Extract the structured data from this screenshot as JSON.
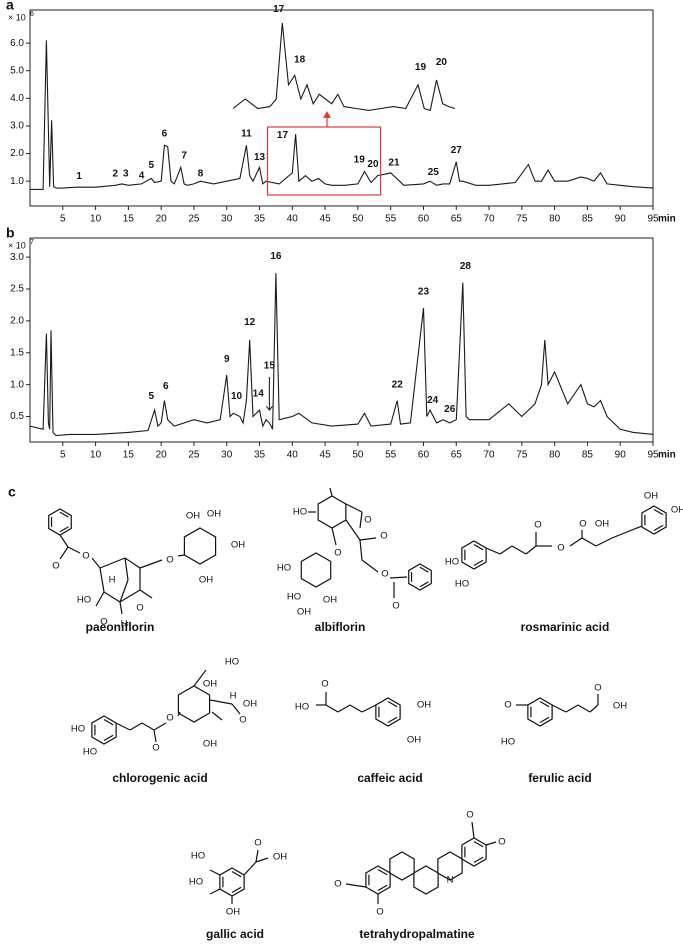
{
  "chart_data": [
    {
      "type": "line",
      "panel": "a",
      "y_scale": "× 10",
      "y_scale_exponent": "6",
      "x_label": "min",
      "xlim": [
        0,
        95
      ],
      "xticks": [
        5,
        10,
        15,
        20,
        25,
        30,
        35,
        40,
        45,
        50,
        55,
        60,
        65,
        70,
        75,
        80,
        85,
        90,
        95
      ],
      "ylim": [
        0.1,
        7.2
      ],
      "yticks": [
        {
          "value": 1,
          "label": "1.0"
        },
        {
          "value": 2,
          "label": "2.0"
        },
        {
          "value": 3,
          "label": "3.0"
        },
        {
          "value": 4,
          "label": "4.0"
        },
        {
          "value": 5,
          "label": "5.0"
        },
        {
          "value": 6,
          "label": "6.0"
        }
      ],
      "color": "#1a1a1a",
      "x": [
        0,
        2,
        2.5,
        3,
        3.3,
        3.6,
        4,
        5,
        7,
        10,
        13,
        14,
        15,
        17,
        18.5,
        19,
        20,
        20.5,
        21,
        21.5,
        22,
        23,
        23.5,
        24,
        25,
        26,
        28,
        30,
        32,
        33,
        33.5,
        34,
        35,
        35.5,
        36,
        38,
        40,
        40.5,
        41,
        42,
        43,
        44,
        45,
        46,
        48,
        50,
        51,
        52,
        53,
        55,
        57,
        60,
        61,
        62,
        63,
        64,
        65,
        65.5,
        66,
        68,
        70,
        72,
        74,
        76,
        77,
        78,
        79,
        80,
        82,
        84,
        85,
        86,
        87,
        88,
        90,
        92,
        95
      ],
      "values": [
        0.7,
        0.7,
        6.1,
        0.8,
        3.2,
        0.8,
        0.75,
        0.75,
        0.78,
        0.78,
        0.85,
        0.9,
        0.85,
        0.9,
        1.1,
        0.95,
        1.0,
        2.3,
        2.25,
        1.0,
        0.9,
        1.5,
        0.9,
        0.85,
        0.9,
        1.0,
        0.9,
        1.0,
        1.1,
        2.3,
        1.2,
        1.0,
        1.5,
        0.9,
        1.0,
        0.9,
        1.3,
        2.7,
        1.0,
        1.2,
        1.0,
        1.1,
        0.9,
        0.85,
        0.85,
        0.9,
        1.35,
        0.95,
        1.2,
        1.3,
        0.85,
        0.9,
        1.0,
        0.85,
        0.9,
        0.9,
        1.7,
        1.0,
        1.0,
        0.85,
        0.85,
        0.9,
        0.95,
        1.6,
        1.0,
        1.0,
        1.4,
        1.0,
        1.0,
        1.15,
        1.1,
        1.0,
        1.3,
        0.9,
        0.85,
        0.8,
        0.75
      ],
      "annotations": [
        {
          "label": "1",
          "x": 7.5,
          "y": 0.95
        },
        {
          "label": "2",
          "x": 13,
          "y": 1.05
        },
        {
          "label": "3",
          "x": 14.6,
          "y": 1.05
        },
        {
          "label": "4",
          "x": 17,
          "y": 0.98
        },
        {
          "label": "5",
          "x": 18.5,
          "y": 1.35
        },
        {
          "label": "6",
          "x": 20.5,
          "y": 2.5
        },
        {
          "label": "7",
          "x": 23.5,
          "y": 1.7
        },
        {
          "label": "8",
          "x": 26,
          "y": 1.05
        },
        {
          "label": "11",
          "x": 33,
          "y": 2.5
        },
        {
          "label": "13",
          "x": 35,
          "y": 1.65
        },
        {
          "label": "17",
          "x": 38.5,
          "y": 2.45
        },
        {
          "label": "19",
          "x": 50.2,
          "y": 1.55
        },
        {
          "label": "20",
          "x": 52.3,
          "y": 1.4
        },
        {
          "label": "21",
          "x": 55.5,
          "y": 1.45
        },
        {
          "label": "25",
          "x": 61.5,
          "y": 1.1
        },
        {
          "label": "27",
          "x": 65,
          "y": 1.9
        }
      ],
      "inset": {
        "x": [
          35,
          36,
          36.5,
          37,
          38,
          38.5,
          39,
          39.5,
          40,
          40.5,
          41,
          41.5,
          42,
          42.5,
          43,
          43.5,
          44,
          45,
          46,
          47,
          48,
          49,
          50,
          50.5,
          51,
          51.5,
          52,
          52.5,
          53
        ],
        "values": [
          0.1,
          0.2,
          0.15,
          0.1,
          0.12,
          0.2,
          1.0,
          0.35,
          0.45,
          0.2,
          0.35,
          0.15,
          0.25,
          0.2,
          0.15,
          0.25,
          0.12,
          0.1,
          0.08,
          0.1,
          0.12,
          0.1,
          0.35,
          0.1,
          0.08,
          0.4,
          0.15,
          0.12,
          0.1
        ],
        "annotations": [
          {
            "label": "17",
            "x": 38.7,
            "y": 1.08
          },
          {
            "label": "18",
            "x": 40.4,
            "y": 0.55
          },
          {
            "label": "19",
            "x": 50.2,
            "y": 0.47
          },
          {
            "label": "20",
            "x": 51.9,
            "y": 0.52
          }
        ]
      }
    },
    {
      "type": "line",
      "panel": "b",
      "y_scale": "× 10",
      "y_scale_exponent": "7",
      "x_label": "min",
      "xlim": [
        0,
        95
      ],
      "xticks": [
        5,
        10,
        15,
        20,
        25,
        30,
        35,
        40,
        45,
        50,
        55,
        60,
        65,
        70,
        75,
        80,
        85,
        90,
        95
      ],
      "ylim": [
        0.1,
        3.3
      ],
      "yticks": [
        0.5,
        {
          "value": 1,
          "label": "1.0"
        },
        1.5,
        {
          "value": 2,
          "label": "2.0"
        },
        2.5,
        {
          "value": 3,
          "label": "3.0"
        }
      ],
      "color": "#1a1a1a",
      "x": [
        0,
        2,
        2.5,
        2.8,
        3,
        3.2,
        3.5,
        4,
        6,
        10,
        15,
        18,
        19,
        19.5,
        20,
        20.5,
        21,
        22,
        25,
        27,
        29,
        30,
        30.5,
        31,
        32,
        32.5,
        33,
        33.5,
        34,
        35,
        35.5,
        36,
        36.5,
        37,
        37.5,
        38,
        40,
        41,
        43,
        46,
        50,
        51,
        52,
        55,
        56,
        56.5,
        58,
        60,
        60.5,
        61,
        62,
        63,
        64,
        65,
        66,
        66.5,
        67,
        70,
        73,
        75,
        77,
        78,
        78.5,
        79,
        80,
        82,
        84,
        85,
        86,
        87,
        88,
        90,
        92,
        95
      ],
      "values": [
        0.35,
        0.3,
        1.8,
        0.4,
        0.3,
        1.85,
        0.25,
        0.2,
        0.22,
        0.22,
        0.25,
        0.28,
        0.6,
        0.35,
        0.4,
        0.75,
        0.45,
        0.35,
        0.45,
        0.4,
        0.45,
        1.15,
        0.5,
        0.55,
        0.5,
        0.4,
        0.75,
        1.7,
        0.5,
        0.6,
        0.35,
        0.45,
        0.4,
        0.3,
        2.75,
        0.45,
        0.5,
        0.55,
        0.4,
        0.35,
        0.38,
        0.55,
        0.35,
        0.38,
        0.75,
        0.38,
        0.4,
        2.2,
        0.5,
        0.6,
        0.4,
        0.45,
        0.4,
        0.45,
        2.6,
        0.5,
        0.45,
        0.45,
        0.7,
        0.5,
        0.7,
        1.0,
        1.7,
        1.0,
        1.2,
        0.7,
        1.0,
        0.7,
        0.65,
        0.75,
        0.5,
        0.3,
        0.25,
        0.22
      ],
      "annotations": [
        {
          "label": "5",
          "x": 18.5,
          "y": 0.72
        },
        {
          "label": "6",
          "x": 20.7,
          "y": 0.88
        },
        {
          "label": "9",
          "x": 30,
          "y": 1.3
        },
        {
          "label": "10",
          "x": 31.5,
          "y": 0.72
        },
        {
          "label": "12",
          "x": 33.5,
          "y": 1.88
        },
        {
          "label": "14",
          "x": 34.8,
          "y": 0.76
        },
        {
          "label": "15",
          "x": 36.5,
          "y": 1.2
        },
        {
          "label": "16",
          "x": 37.5,
          "y": 2.92
        },
        {
          "label": "22",
          "x": 56,
          "y": 0.9
        },
        {
          "label": "23",
          "x": 60,
          "y": 2.36
        },
        {
          "label": "24",
          "x": 61.4,
          "y": 0.66
        },
        {
          "label": "26",
          "x": 64,
          "y": 0.52
        },
        {
          "label": "28",
          "x": 66.4,
          "y": 2.76
        }
      ]
    }
  ],
  "structures_panel": "c",
  "structures": [
    {
      "name": "paeoniflorin",
      "atoms": [
        "O",
        "O",
        "O",
        "O",
        "O",
        "HO",
        "H",
        "H",
        "OH",
        "OH",
        "OH",
        "OH"
      ]
    },
    {
      "name": "albiflorin",
      "atoms": [
        "HO",
        "O",
        "O",
        "O",
        "HO",
        "HO",
        "OH",
        "OH",
        "O",
        "O"
      ]
    },
    {
      "name": "rosmarinic acid",
      "atoms": [
        "HO",
        "HO",
        "O",
        "O",
        "O",
        "OH",
        "OH",
        "OH"
      ]
    },
    {
      "name": "chlorogenic acid",
      "atoms": [
        "HO",
        "HO",
        "O",
        "O",
        "HO",
        "OH",
        "OH",
        "O",
        "H",
        "OH"
      ]
    },
    {
      "name": "caffeic acid",
      "atoms": [
        "O",
        "HO",
        "OH",
        "OH"
      ]
    },
    {
      "name": "ferulic acid",
      "atoms": [
        "O",
        "O",
        "HO",
        "OH"
      ]
    },
    {
      "name": "gallic acid",
      "atoms": [
        "O",
        "OH",
        "HO",
        "HO",
        "OH"
      ]
    },
    {
      "name": "tetrahydropalmatine",
      "atoms": [
        "O",
        "O",
        "N",
        "O",
        "O"
      ]
    }
  ]
}
